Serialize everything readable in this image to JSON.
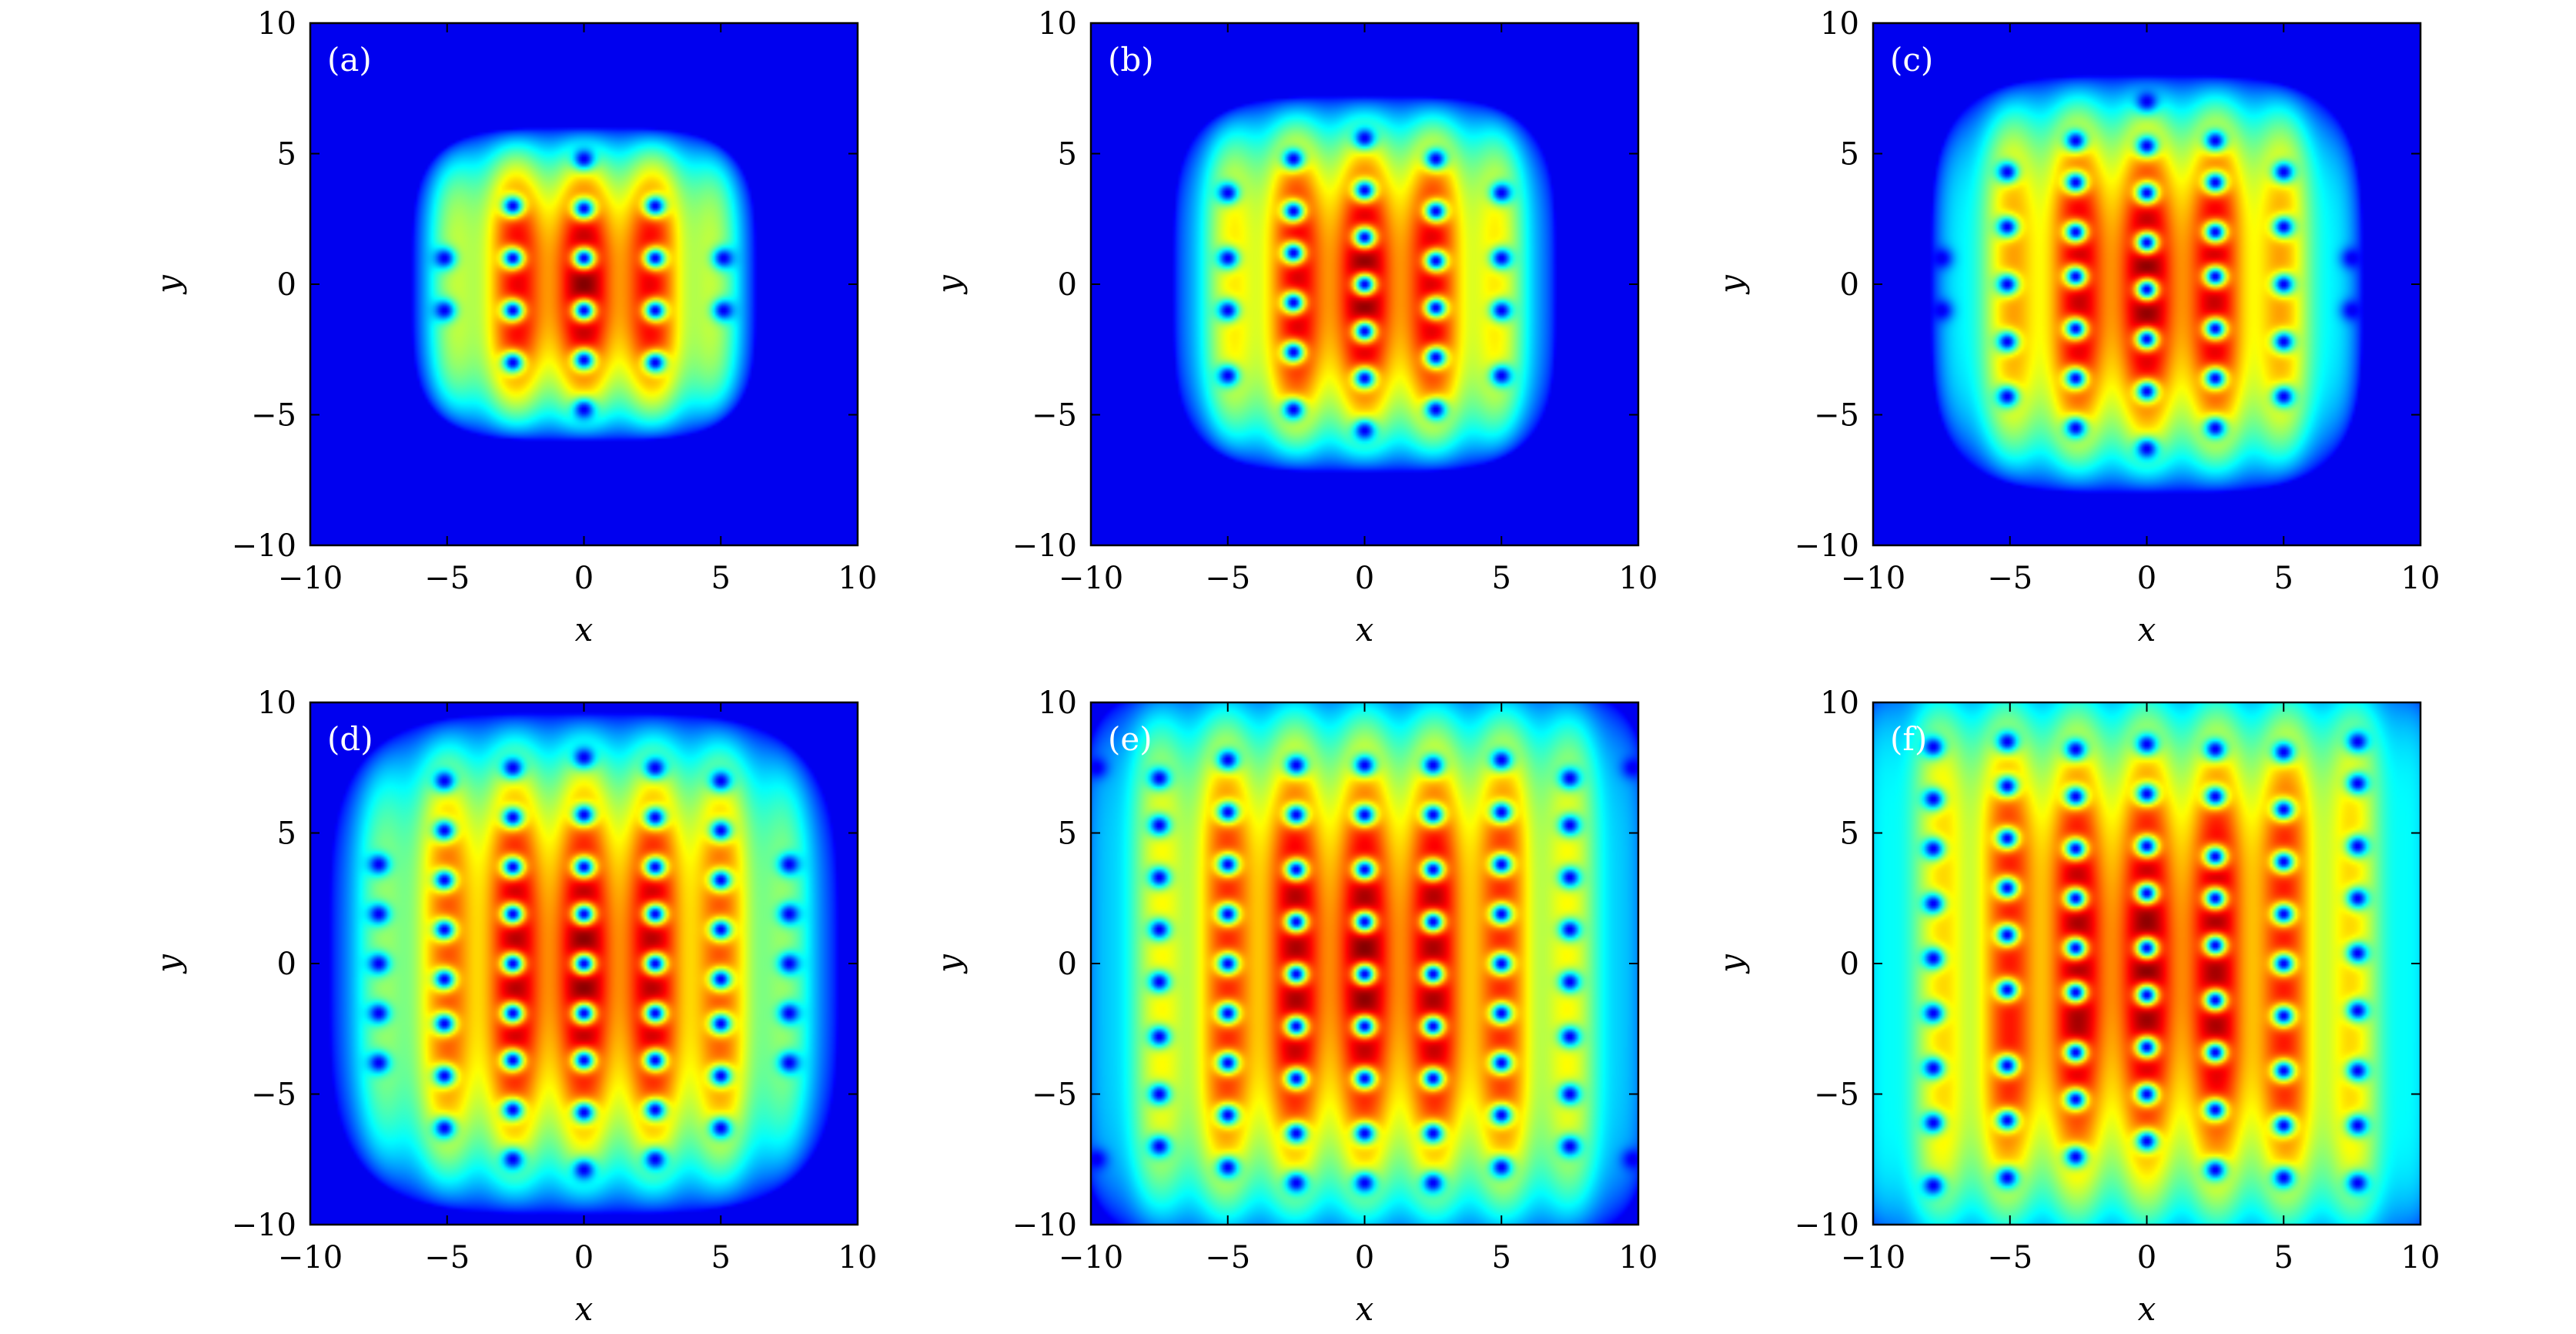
{
  "chart_data": [
    {
      "type": "heatmap",
      "panel_label": "(a)",
      "xlabel": "x",
      "ylabel": "y",
      "xlim": [
        -10,
        10
      ],
      "ylim": [
        -10,
        10
      ],
      "xticks": [
        "−10",
        "−5",
        "0",
        "5",
        "10"
      ],
      "yticks": [
        "10",
        "5",
        "0",
        "−5",
        "−10"
      ],
      "colormap": "jet",
      "cloud_radius": [
        6.3,
        6.0
      ],
      "envelope_exponent": 4,
      "vortex_columns": [
        {
          "x": -5.1,
          "y": [
            -1,
            1
          ]
        },
        {
          "x": -2.6,
          "y": [
            -3,
            -1,
            1,
            3
          ]
        },
        {
          "x": 0,
          "y": [
            -4.8,
            -2.9,
            -1,
            1,
            2.9,
            4.8
          ]
        },
        {
          "x": 2.6,
          "y": [
            -3,
            -1,
            1,
            3
          ]
        },
        {
          "x": 5.1,
          "y": [
            -1,
            1
          ]
        }
      ]
    },
    {
      "type": "heatmap",
      "panel_label": "(b)",
      "xlabel": "x",
      "ylabel": "y",
      "xlim": [
        -10,
        10
      ],
      "ylim": [
        -10,
        10
      ],
      "xticks": [
        "−10",
        "−5",
        "0",
        "5",
        "10"
      ],
      "yticks": [
        "10",
        "5",
        "0",
        "−5",
        "−10"
      ],
      "colormap": "jet",
      "cloud_radius": [
        7.0,
        7.2
      ],
      "envelope_exponent": 4,
      "vortex_columns": [
        {
          "x": -5.0,
          "y": [
            -3.5,
            -1,
            1,
            3.5
          ]
        },
        {
          "x": -2.6,
          "y": [
            -4.8,
            -2.6,
            -0.7,
            1.2,
            2.8,
            4.8
          ]
        },
        {
          "x": 0,
          "y": [
            -5.6,
            -3.6,
            -1.8,
            0,
            1.8,
            3.6,
            5.6
          ]
        },
        {
          "x": 2.6,
          "y": [
            -4.8,
            -2.8,
            -0.9,
            0.9,
            2.8,
            4.8
          ]
        },
        {
          "x": 5.0,
          "y": [
            -3.5,
            -1,
            1,
            3.5
          ]
        }
      ]
    },
    {
      "type": "heatmap",
      "panel_label": "(c)",
      "xlabel": "x",
      "ylabel": "y",
      "xlim": [
        -10,
        10
      ],
      "ylim": [
        -10,
        10
      ],
      "xticks": [
        "−10",
        "−5",
        "0",
        "5",
        "10"
      ],
      "yticks": [
        "10",
        "5",
        "0",
        "−5",
        "−10"
      ],
      "colormap": "jet",
      "cloud_radius": [
        7.9,
        8.0
      ],
      "envelope_exponent": 4,
      "vortex_columns": [
        {
          "x": -7.5,
          "y": [
            -1,
            1
          ]
        },
        {
          "x": -5.1,
          "y": [
            -4.3,
            -2.2,
            0,
            2.2,
            4.3
          ]
        },
        {
          "x": -2.6,
          "y": [
            -5.5,
            -3.6,
            -1.7,
            0.3,
            2.0,
            3.9,
            5.5
          ]
        },
        {
          "x": 0,
          "y": [
            -6.3,
            -4.1,
            -2.1,
            -0.2,
            1.6,
            3.5,
            5.3,
            7.0
          ]
        },
        {
          "x": 2.5,
          "y": [
            -5.5,
            -3.6,
            -1.7,
            0.3,
            2.0,
            3.9,
            5.5
          ]
        },
        {
          "x": 5.0,
          "y": [
            -4.3,
            -2.2,
            0,
            2.2,
            4.3
          ]
        },
        {
          "x": 7.5,
          "y": [
            -1,
            1
          ]
        }
      ]
    },
    {
      "type": "heatmap",
      "panel_label": "(d)",
      "xlabel": "x",
      "ylabel": "y",
      "xlim": [
        -10,
        10
      ],
      "ylim": [
        -10,
        10
      ],
      "xticks": [
        "−10",
        "−5",
        "0",
        "5",
        "10"
      ],
      "yticks": [
        "10",
        "5",
        "0",
        "−5",
        "−10"
      ],
      "colormap": "jet",
      "cloud_radius": [
        9.3,
        9.6
      ],
      "envelope_exponent": 4,
      "vortex_columns": [
        {
          "x": -7.5,
          "y": [
            -3.8,
            -1.9,
            0,
            1.9,
            3.8
          ]
        },
        {
          "x": -5.1,
          "y": [
            -6.3,
            -4.3,
            -2.3,
            -0.6,
            1.3,
            3.2,
            5.1,
            7.0
          ]
        },
        {
          "x": -2.6,
          "y": [
            -7.5,
            -5.6,
            -3.7,
            -1.9,
            0,
            1.9,
            3.7,
            5.6,
            7.5
          ]
        },
        {
          "x": 0,
          "y": [
            -7.9,
            -5.7,
            -3.7,
            -1.9,
            0,
            1.9,
            3.7,
            5.7,
            7.9
          ]
        },
        {
          "x": 2.6,
          "y": [
            -7.5,
            -5.6,
            -3.7,
            -1.9,
            0,
            1.9,
            3.7,
            5.6,
            7.5
          ]
        },
        {
          "x": 5.0,
          "y": [
            -6.3,
            -4.3,
            -2.3,
            -0.6,
            1.3,
            3.2,
            5.1,
            7.0
          ]
        },
        {
          "x": 7.5,
          "y": [
            -3.8,
            -1.9,
            0,
            1.9,
            3.8
          ]
        }
      ]
    },
    {
      "type": "heatmap",
      "panel_label": "(e)",
      "xlabel": "x",
      "ylabel": "y",
      "xlim": [
        -10,
        10
      ],
      "ylim": [
        -10,
        10
      ],
      "xticks": [
        "−10",
        "−5",
        "0",
        "5",
        "10"
      ],
      "yticks": [
        "10",
        "5",
        "0",
        "−5",
        "−10"
      ],
      "colormap": "jet",
      "cloud_radius": [
        10.5,
        10.9
      ],
      "envelope_exponent": 6,
      "vortex_columns": [
        {
          "x": -9.8,
          "y": [
            -7.5,
            7.5
          ]
        },
        {
          "x": -7.5,
          "y": [
            -7.0,
            -5.0,
            -2.8,
            -0.7,
            1.3,
            3.3,
            5.3,
            7.1
          ]
        },
        {
          "x": -5.0,
          "y": [
            -7.8,
            -5.8,
            -3.8,
            -1.9,
            0,
            1.9,
            3.8,
            5.8,
            7.8
          ]
        },
        {
          "x": -2.5,
          "y": [
            -8.4,
            -6.5,
            -4.4,
            -2.4,
            -0.4,
            1.6,
            3.6,
            5.7,
            7.6
          ]
        },
        {
          "x": 0,
          "y": [
            -8.4,
            -6.5,
            -4.4,
            -2.4,
            -0.4,
            1.6,
            3.6,
            5.7,
            7.6
          ]
        },
        {
          "x": 2.5,
          "y": [
            -8.4,
            -6.5,
            -4.4,
            -2.4,
            -0.4,
            1.6,
            3.6,
            5.7,
            7.6
          ]
        },
        {
          "x": 5.0,
          "y": [
            -7.8,
            -5.8,
            -3.8,
            -1.9,
            0,
            1.9,
            3.8,
            5.8,
            7.8
          ]
        },
        {
          "x": 7.5,
          "y": [
            -7.0,
            -5.0,
            -2.8,
            -0.7,
            1.3,
            3.3,
            5.3,
            7.1
          ]
        },
        {
          "x": 9.8,
          "y": [
            -7.5,
            7.5
          ]
        }
      ]
    },
    {
      "type": "heatmap",
      "panel_label": "(f)",
      "xlabel": "x",
      "ylabel": "y",
      "xlim": [
        -10,
        10
      ],
      "ylim": [
        -10,
        10
      ],
      "xticks": [
        "−10",
        "−5",
        "0",
        "5",
        "10"
      ],
      "yticks": [
        "10",
        "5",
        "0",
        "−5",
        "−10"
      ],
      "colormap": "jet",
      "cloud_radius": [
        11.0,
        11.4
      ],
      "envelope_exponent": 8,
      "vortex_columns": [
        {
          "x": -7.8,
          "y": [
            -8.5,
            -6.1,
            -4.0,
            -1.9,
            0.2,
            2.3,
            4.4,
            6.3,
            8.3
          ]
        },
        {
          "x": -5.1,
          "y": [
            -8.2,
            -6.0,
            -3.9,
            -1.0,
            1.1,
            2.9,
            4.8,
            6.8,
            8.5
          ]
        },
        {
          "x": -2.6,
          "y": [
            -7.4,
            -5.2,
            -3.4,
            -1.1,
            0.6,
            2.5,
            4.4,
            6.4,
            8.2
          ]
        },
        {
          "x": 0,
          "y": [
            -6.8,
            -5.0,
            -3.2,
            -1.2,
            0.6,
            2.7,
            4.5,
            6.5,
            8.4
          ]
        },
        {
          "x": 2.5,
          "y": [
            -7.9,
            -5.6,
            -3.4,
            -1.4,
            0.7,
            2.5,
            4.1,
            6.4,
            8.2
          ]
        },
        {
          "x": 5.0,
          "y": [
            -8.2,
            -6.2,
            -4.1,
            -2.0,
            0,
            1.9,
            3.9,
            5.9,
            8.1
          ]
        },
        {
          "x": 7.7,
          "y": [
            -8.4,
            -6.2,
            -4.1,
            -1.8,
            0.4,
            2.5,
            4.5,
            6.9,
            8.5
          ]
        }
      ]
    }
  ]
}
